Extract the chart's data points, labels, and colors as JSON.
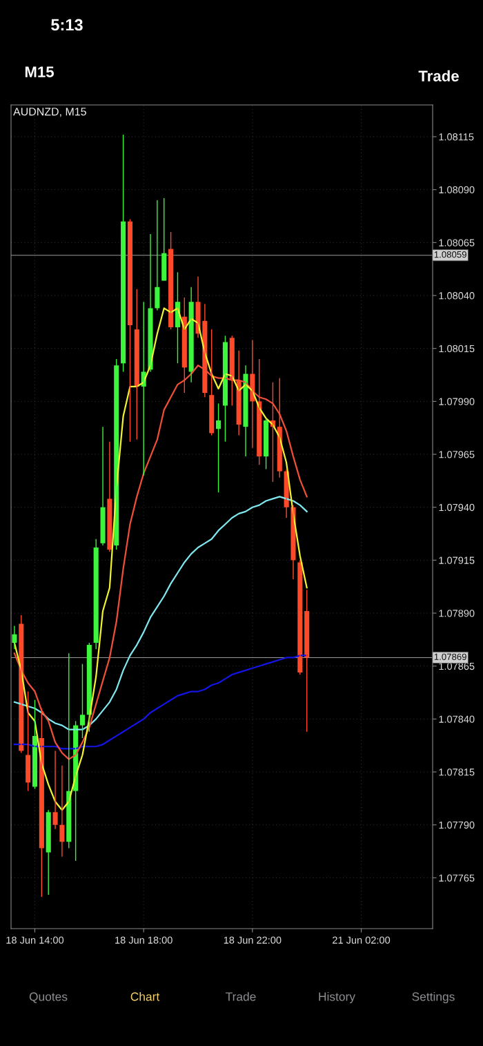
{
  "chart_data": {
    "type": "candlestick",
    "title": "AUDNZD, M15",
    "categories": [
      null,
      null,
      null,
      "18 Jun 14:00",
      null,
      null,
      null,
      null,
      null,
      null,
      null,
      null,
      null,
      null,
      null,
      null,
      null,
      null,
      null,
      "18 Jun 18:00",
      null,
      null,
      null,
      null,
      null,
      null,
      null,
      null,
      null,
      null,
      null,
      null,
      null,
      null,
      null,
      "18 Jun 22:00",
      null,
      null,
      null,
      null,
      null,
      null,
      null,
      null,
      null,
      null,
      null,
      null,
      null,
      null,
      null,
      "21 Jun 02:00",
      null,
      null,
      null,
      null,
      null,
      null,
      null,
      null,
      null,
      null
    ],
    "ohlc": [
      [
        1.07876,
        1.07884,
        1.07873,
        1.0788
      ],
      [
        1.07885,
        1.07889,
        1.07824,
        1.07825
      ],
      [
        1.07823,
        1.07853,
        1.07806,
        1.0781
      ],
      [
        1.07808,
        1.07849,
        1.07807,
        1.07832
      ],
      [
        1.07831,
        1.07845,
        1.07756,
        1.07779
      ],
      [
        1.07777,
        1.07797,
        1.07757,
        1.07796
      ],
      [
        1.07796,
        1.07825,
        1.07788,
        1.0779
      ],
      [
        1.0779,
        1.07818,
        1.07775,
        1.07782
      ],
      [
        1.07782,
        1.07871,
        1.07779,
        1.07806
      ],
      [
        1.07806,
        1.07839,
        1.07773,
        1.07837
      ],
      [
        1.07837,
        1.07866,
        1.07831,
        1.07842
      ],
      [
        1.07842,
        1.07876,
        1.07834,
        1.07875
      ],
      [
        1.07876,
        1.07925,
        1.07873,
        1.07921
      ],
      [
        1.07923,
        1.07978,
        1.07922,
        1.0794
      ],
      [
        1.07944,
        1.07971,
        1.07919,
        1.0792
      ],
      [
        1.07922,
        1.0801,
        1.0792,
        1.08007
      ],
      [
        1.08008,
        1.08116,
        1.08004,
        1.08075
      ],
      [
        1.08075,
        1.08076,
        1.07971,
        1.08026
      ],
      [
        1.08024,
        1.08043,
        1.07972,
        1.07997
      ],
      [
        1.07997,
        1.08037,
        1.07955,
        1.08004
      ],
      [
        1.08005,
        1.08069,
        1.08004,
        1.08034
      ],
      [
        1.08034,
        1.08085,
        1.08033,
        1.08044
      ],
      [
        1.08047,
        1.08086,
        1.08047,
        1.0806
      ],
      [
        1.08062,
        1.0807,
        1.08024,
        1.08025
      ],
      [
        1.08025,
        1.08051,
        1.08008,
        1.08037
      ],
      [
        1.0803,
        1.08039,
        1.07994,
        1.08006
      ],
      [
        1.08004,
        1.08044,
        1.07999,
        1.08037
      ],
      [
        1.08037,
        1.08049,
        1.0802,
        1.08022
      ],
      [
        1.08028,
        1.08036,
        1.07992,
        1.07994
      ],
      [
        1.07993,
        1.08024,
        1.07974,
        1.07975
      ],
      [
        1.07977,
        1.07989,
        1.07947,
        1.07981
      ],
      [
        1.07988,
        1.08021,
        1.07971,
        1.08018
      ],
      [
        1.0802,
        1.08021,
        1.07988,
        1.08
      ],
      [
        1.08,
        1.08014,
        1.07974,
        1.07979
      ],
      [
        1.07978,
        1.08007,
        1.07964,
        1.08003
      ],
      [
        1.08003,
        1.08019,
        1.07968,
        1.0799
      ],
      [
        1.0799,
        1.0801,
        1.0796,
        1.07964
      ],
      [
        1.07964,
        1.07982,
        1.07958,
        1.07981
      ],
      [
        1.07981,
        1.07999,
        1.07952,
        1.07978
      ],
      [
        1.07978,
        1.08001,
        1.07954,
        1.07957
      ],
      [
        1.07957,
        1.07958,
        1.07935,
        1.0794
      ],
      [
        1.0794,
        1.07941,
        1.07906,
        1.07915
      ],
      [
        1.07914,
        1.07915,
        1.07861,
        1.07862
      ],
      [
        1.07891,
        1.07901,
        1.07834,
        1.07869
      ],
      null,
      null,
      null,
      null,
      null,
      null,
      null,
      null,
      null,
      null,
      null,
      null,
      null,
      null,
      null,
      null,
      null,
      null
    ],
    "colors": [
      "#3df53d",
      "#ff4a2a",
      "#ff4a2a",
      "#3df53d",
      "#ff4a2a",
      "#3df53d",
      "#ff4a2a",
      "#ff4a2a",
      "#3df53d",
      "#3df53d",
      "#3df53d",
      "#3df53d",
      "#3df53d",
      "#3df53d",
      "#ff4a2a",
      "#3df53d",
      "#3df53d",
      "#ff4a2a",
      "#ff4a2a",
      "#3df53d",
      "#3df53d",
      "#3df53d",
      "#3df53d",
      "#ff4a2a",
      "#3df53d",
      "#ff4a2a",
      "#3df53d",
      "#ff4a2a",
      "#ff4a2a",
      "#ff4a2a",
      "#3df53d",
      "#3df53d",
      "#ff4a2a",
      "#ff4a2a",
      "#3df53d",
      "#ff4a2a",
      "#ff4a2a",
      "#3df53d",
      "#ff4a2a",
      "#ff4a2a",
      "#ff4a2a",
      "#ff4a2a",
      "#ff4a2a",
      "#ff4a2a",
      null,
      null,
      null,
      null,
      null,
      null,
      null,
      null,
      null,
      null,
      null,
      null,
      null,
      null,
      null,
      null,
      null,
      null
    ],
    "series": [
      {
        "type": "line",
        "color": "#1414e6",
        "values": [
          1.07828,
          1.07828,
          1.07828,
          1.07827,
          1.07827,
          1.07827,
          1.07827,
          1.07826,
          1.07826,
          1.07826,
          1.07827,
          1.07827,
          1.07827,
          1.07828,
          1.0783,
          1.07832,
          1.07834,
          1.07836,
          1.07838,
          1.0784,
          1.07843,
          1.07845,
          1.07847,
          1.07849,
          1.07851,
          1.07852,
          1.07853,
          1.07853,
          1.07854,
          1.07856,
          1.07857,
          1.07859,
          1.07861,
          1.07862,
          1.07863,
          1.07864,
          1.07865,
          1.07866,
          1.07867,
          1.07868,
          1.07869,
          1.07869,
          1.0787,
          1.0787,
          null,
          null,
          null,
          null,
          null,
          null,
          null,
          null,
          null,
          null,
          null,
          null,
          null,
          null,
          null,
          null,
          null,
          null
        ]
      },
      {
        "type": "line",
        "color": "#7fe8f0",
        "values": [
          1.07848,
          1.07847,
          1.07846,
          1.07845,
          1.07843,
          1.0784,
          1.07838,
          1.07837,
          1.07835,
          1.07835,
          1.07835,
          1.07837,
          1.0784,
          1.07844,
          1.07848,
          1.07854,
          1.07863,
          1.0787,
          1.07875,
          1.07881,
          1.07888,
          1.07893,
          1.07898,
          1.07904,
          1.07909,
          1.07914,
          1.07918,
          1.07921,
          1.07923,
          1.07925,
          1.07929,
          1.07932,
          1.07935,
          1.07937,
          1.07938,
          1.0794,
          1.07941,
          1.07943,
          1.07944,
          1.07945,
          1.07944,
          1.07943,
          1.07941,
          1.07938,
          null,
          null,
          null,
          null,
          null,
          null,
          null,
          null,
          null,
          null,
          null,
          null,
          null,
          null,
          null,
          null,
          null,
          null
        ]
      },
      {
        "type": "line",
        "color": "#f0503a",
        "values": [
          1.07871,
          1.07863,
          1.07857,
          1.07853,
          1.07844,
          1.07839,
          1.07829,
          1.07824,
          1.07821,
          1.07823,
          1.07829,
          1.07836,
          1.07847,
          1.07858,
          1.07869,
          1.07886,
          1.07911,
          1.07932,
          1.07945,
          1.07956,
          1.07964,
          1.07972,
          1.07986,
          1.07992,
          1.07998,
          1.08,
          1.08003,
          1.08007,
          1.08005,
          1.08002,
          1.08001,
          1.08001,
          1.08,
          1.08,
          1.07999,
          1.07995,
          1.07992,
          1.07991,
          1.07989,
          1.07984,
          1.07976,
          1.07964,
          1.07953,
          1.07945,
          null,
          null,
          null,
          null,
          null,
          null,
          null,
          null,
          null,
          null,
          null,
          null,
          null,
          null,
          null,
          null,
          null,
          null
        ]
      },
      {
        "type": "line",
        "color": "#f2f230",
        "values": [
          1.07876,
          1.07863,
          1.07843,
          1.07839,
          1.07819,
          1.07809,
          1.07801,
          1.07797,
          1.07801,
          1.07813,
          1.07823,
          1.0784,
          1.0786,
          1.07891,
          1.07902,
          1.07949,
          1.07983,
          1.07997,
          1.07997,
          1.07999,
          1.08007,
          1.08022,
          1.08034,
          1.08032,
          1.08034,
          1.08024,
          1.08029,
          1.08027,
          1.08013,
          1.08003,
          1.07996,
          1.08003,
          1.08002,
          1.07995,
          1.07998,
          1.07995,
          1.07987,
          1.07982,
          1.07979,
          1.07973,
          1.07961,
          1.07937,
          1.07917,
          1.07902,
          null,
          null,
          null,
          null,
          null,
          null,
          null,
          null,
          null,
          null,
          null,
          null,
          null,
          null,
          null,
          null,
          null,
          null
        ]
      }
    ],
    "ylim": [
      1.07741,
      1.0813
    ],
    "yticks": [
      1.08115,
      {
        "value": 1.0809,
        "label": "1.08090"
      },
      1.08065,
      {
        "value": 1.0804,
        "label": "1.08040"
      },
      1.08015,
      {
        "value": 1.0799,
        "label": "1.07990"
      },
      1.07965,
      {
        "value": 1.0794,
        "label": "1.07940"
      },
      1.07915,
      {
        "value": 1.0789,
        "label": "1.07890"
      },
      1.07865,
      {
        "value": 1.0784,
        "label": "1.07840"
      },
      1.07815,
      {
        "value": 1.0779,
        "label": "1.07790"
      },
      1.07765
    ],
    "ref_lines": [
      {
        "axis": "y",
        "value": 1.08059,
        "label": "1.08059",
        "color": "#9a9a9a"
      },
      {
        "axis": "y",
        "value": 1.07869,
        "label": "1.07869",
        "color": "#9a9a9a"
      }
    ],
    "grid": true,
    "annotations": [
      "5:13",
      "M15",
      "Trade",
      "Quotes",
      "Chart",
      "Trade",
      "History",
      "Settings"
    ]
  }
}
